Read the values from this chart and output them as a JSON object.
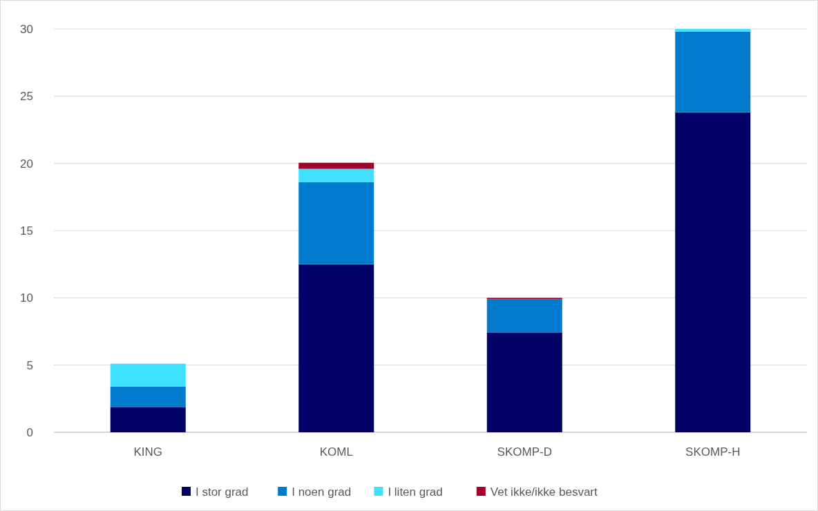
{
  "chart_data": {
    "type": "bar",
    "stacked": true,
    "categories": [
      "KING",
      "KOML",
      "SKOMP-D",
      "SKOMP-H"
    ],
    "series": [
      {
        "name": "I stor grad",
        "color": "#000066",
        "values": [
          1.85,
          12.5,
          7.4,
          23.8
        ]
      },
      {
        "name": "I noen grad",
        "color": "#007acc",
        "values": [
          1.55,
          6.1,
          2.5,
          6.0
        ]
      },
      {
        "name": "I liten grad",
        "color": "#40e0ff",
        "values": [
          1.7,
          1.0,
          null,
          0.2
        ]
      },
      {
        "name": "Vet ikke/ikke besvart",
        "color": "#a0002a",
        "values": [
          null,
          0.45,
          0.1,
          null
        ]
      }
    ],
    "ylim": [
      0,
      30
    ],
    "yticks": [
      0,
      5,
      10,
      15,
      20,
      25,
      30
    ],
    "grid": "y",
    "legend": "bottom"
  }
}
